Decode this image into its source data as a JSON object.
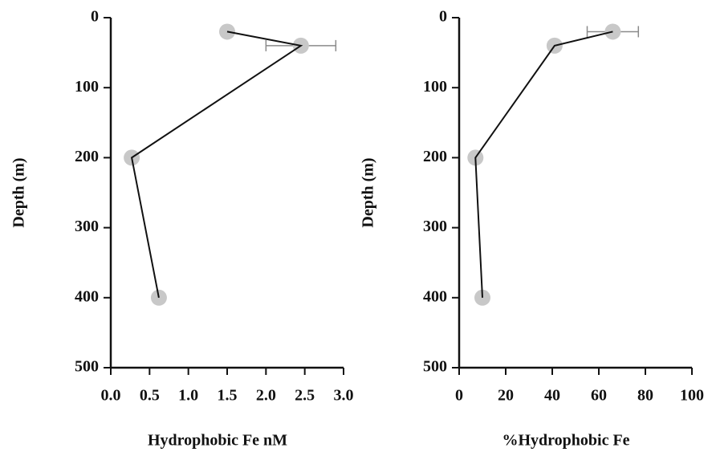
{
  "chart_data": [
    {
      "type": "line",
      "ylabel": "Depth (m)",
      "xlabel": "Hydrophobic Fe nM",
      "depth": [
        20,
        40,
        200,
        400
      ],
      "values": [
        1.5,
        2.45,
        0.27,
        0.62
      ],
      "errors": [
        null,
        0.45,
        null,
        null
      ],
      "marker_color": "#c8c8c8",
      "line_color": "#111111",
      "error_color": "#8a8a8a",
      "xlim": [
        0,
        3
      ],
      "xticks": [
        {
          "value": 0,
          "label": "0.0"
        },
        0.5,
        {
          "value": 1,
          "label": "1.0"
        },
        1.5,
        {
          "value": 2,
          "label": "2.0"
        },
        2.5,
        {
          "value": 3,
          "label": "3.0"
        }
      ],
      "ylim": [
        0,
        500
      ],
      "yticks": [
        0,
        100,
        200,
        300,
        400,
        500
      ],
      "y_inverted": true
    },
    {
      "type": "line",
      "ylabel": "Depth (m)",
      "xlabel": "%Hydrophobic Fe",
      "depth": [
        20,
        40,
        200,
        400
      ],
      "values": [
        66,
        41,
        7,
        10
      ],
      "errors": [
        11,
        null,
        null,
        null
      ],
      "marker_color": "#c8c8c8",
      "line_color": "#111111",
      "error_color": "#8a8a8a",
      "xlim": [
        0,
        100
      ],
      "xticks": [
        0,
        20,
        40,
        60,
        80,
        100
      ],
      "ylim": [
        0,
        500
      ],
      "yticks": [
        0,
        100,
        200,
        300,
        400,
        500
      ],
      "y_inverted": true
    }
  ]
}
